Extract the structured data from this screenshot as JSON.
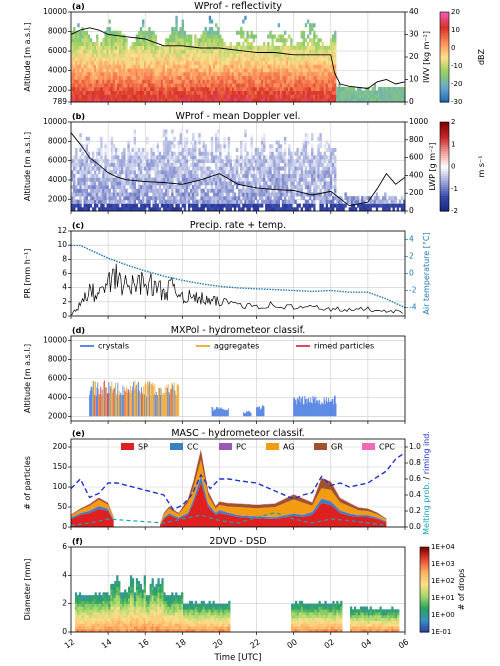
{
  "figure": {
    "x_axis": {
      "label": "Time [UTC]",
      "tick_labels": [
        "12",
        "14",
        "16",
        "18",
        "20",
        "22",
        "00",
        "02",
        "04",
        "06"
      ],
      "start_hour": 12,
      "end_hour": 30
    }
  },
  "chart_data": [
    {
      "type": "heatmap",
      "panel": "(a)",
      "title": "WProf - reflectivity",
      "ylabel": "Altitude [m a.s.l.]",
      "y_ticks": [
        "10000",
        "8000",
        "6000",
        "4000",
        "2000",
        "789"
      ],
      "ylim": [
        789,
        10000
      ],
      "right_axis": {
        "label": "IWV [kg m⁻²]",
        "ticks": [
          "40",
          "30",
          "20",
          "10",
          "0"
        ],
        "range": [
          0,
          40
        ]
      },
      "colorbar": {
        "label": "dBZ",
        "ticks": [
          "20",
          "10",
          "0",
          "-10",
          "-20",
          "-30"
        ],
        "range": [
          -30,
          20
        ],
        "colors": [
          "#2166ac",
          "#67a9cf",
          "#91cf60",
          "#fee08b",
          "#fc8d59",
          "#d73027",
          "#f15bb5"
        ]
      },
      "line_series": {
        "name": "IWV",
        "x": [
          12,
          12.5,
          13,
          13.5,
          14,
          15,
          16,
          17,
          18,
          19,
          20,
          21,
          22,
          23,
          24,
          25,
          26,
          26.2,
          26.5,
          27,
          28,
          28.5,
          29,
          29.5,
          30
        ],
        "y": [
          30,
          32,
          33,
          32,
          30,
          29,
          28,
          25,
          25,
          24,
          24,
          23,
          22,
          22,
          21,
          21,
          21,
          13,
          8,
          7,
          6,
          9,
          10,
          8,
          9
        ]
      }
    },
    {
      "type": "heatmap",
      "panel": "(b)",
      "title": "WProf - mean Doppler vel.",
      "ylabel": "Altitude [m a.s.l.]",
      "y_ticks": [
        "10000",
        "8000",
        "6000",
        "4000",
        "2000"
      ],
      "ylim": [
        789,
        10000
      ],
      "right_axis": {
        "label": "LWP [g m⁻²]",
        "ticks": [
          "1000",
          "800",
          "600",
          "400",
          "200",
          "0"
        ],
        "range": [
          0,
          1000
        ]
      },
      "colorbar": {
        "label": "m s⁻¹",
        "ticks": [
          "2",
          "1",
          "0",
          "-1",
          "-2"
        ],
        "range": [
          -2,
          2
        ],
        "colors": [
          "#1a237e",
          "#3949ab",
          "#9fa8da",
          "#ffffff",
          "#ef9a9a",
          "#c62828",
          "#7f0000"
        ]
      },
      "line_series": {
        "name": "LWP",
        "x": [
          12,
          12.5,
          13,
          13.5,
          14,
          14.5,
          15,
          16,
          17,
          18,
          19,
          20,
          21,
          22,
          23,
          24,
          25,
          26,
          27,
          28,
          28.5,
          29,
          29.5,
          30
        ],
        "y": [
          880,
          750,
          600,
          520,
          430,
          380,
          350,
          330,
          320,
          300,
          350,
          420,
          300,
          260,
          240,
          230,
          180,
          220,
          60,
          100,
          250,
          420,
          300,
          380
        ]
      }
    },
    {
      "type": "line",
      "panel": "(c)",
      "title": "Precip. rate + temp.",
      "ylabel": "PR [mm h⁻¹]",
      "y_ticks": [
        "0",
        "2",
        "4",
        "6",
        "8",
        "10",
        "12"
      ],
      "ylim": [
        0,
        12
      ],
      "right_axis": {
        "label": "Air temperature [°C]",
        "ticks": [
          "4",
          "2",
          "0",
          "-2",
          "-4"
        ],
        "range": [
          -5,
          5
        ]
      },
      "series": [
        {
          "name": "PR",
          "x": [
            12,
            12.5,
            13,
            13.5,
            14,
            14.5,
            15,
            15.5,
            16,
            16.5,
            17,
            17.5,
            18,
            18.5,
            19,
            19.5,
            20,
            21,
            22,
            23,
            24,
            25,
            26,
            27,
            28,
            29,
            30
          ],
          "y": [
            0.2,
            1.5,
            3.5,
            3.0,
            4.5,
            5.5,
            4.0,
            4.5,
            5.0,
            4.0,
            3.5,
            4.0,
            3.0,
            2.5,
            2.5,
            2.0,
            2.0,
            1.8,
            1.5,
            1.5,
            1.2,
            1.2,
            1.0,
            0.8,
            1.0,
            0.8,
            0.5
          ]
        },
        {
          "name": "Air temperature",
          "x": [
            12,
            12.5,
            13,
            14,
            15,
            16,
            17,
            18,
            19,
            20,
            21,
            22,
            23,
            24,
            25,
            26,
            27,
            28,
            29,
            30
          ],
          "y": [
            3.3,
            3.3,
            2.8,
            1.8,
            1.0,
            0.3,
            -0.3,
            -0.8,
            -1.2,
            -1.5,
            -1.7,
            -1.8,
            -1.9,
            -2.0,
            -2.1,
            -2.0,
            -2.2,
            -2.2,
            -3.0,
            -4.0
          ]
        }
      ]
    },
    {
      "type": "heatmap",
      "panel": "(d)",
      "title": "MXPol - hydrometeor classif.",
      "ylabel": "Altitude [m a.s.l.]",
      "y_ticks": [
        "10000",
        "8000",
        "6000",
        "4000",
        "2000"
      ],
      "ylim": [
        1500,
        10500
      ],
      "legend": {
        "position": "top",
        "entries": [
          {
            "name": "crystals",
            "color": "#4a7ce0"
          },
          {
            "name": "aggregates",
            "color": "#f0a830"
          },
          {
            "name": "rimed particles",
            "color": "#e0304a"
          }
        ]
      }
    },
    {
      "type": "area",
      "panel": "(e)",
      "title": "MASC - hydrometeor classif.",
      "ylabel": "# of particles",
      "y_ticks": [
        "0",
        "50",
        "100",
        "150",
        "200"
      ],
      "ylim": [
        0,
        220
      ],
      "right_axis": {
        "label_parts": [
          "Melting prob.",
          "/",
          "riming ind."
        ],
        "label_colors": [
          "#17a2b8",
          "#000000",
          "#2233cc"
        ],
        "ticks": [
          "0.0",
          "0.2",
          "0.4",
          "0.6",
          "0.8",
          "1.0"
        ],
        "range": [
          0,
          1.1
        ]
      },
      "legend": {
        "position": "top",
        "entries": [
          {
            "name": "SP",
            "color": "#e02020"
          },
          {
            "name": "CC",
            "color": "#3a7fc0"
          },
          {
            "name": "PC",
            "color": "#9b59b6"
          },
          {
            "name": "AG",
            "color": "#f39c12"
          },
          {
            "name": "GR",
            "color": "#a0522d"
          },
          {
            "name": "CPC",
            "color": "#f06bb5"
          }
        ]
      },
      "x": [
        12,
        12.5,
        13,
        13.5,
        14,
        14.3,
        16.8,
        17,
        17.3,
        17.5,
        17.8,
        18.3,
        18.6,
        19,
        19.4,
        19.8,
        20,
        20.5,
        21,
        22,
        23,
        24,
        24.5,
        25,
        25.5,
        26,
        26.5,
        27,
        27.5,
        28,
        28.5,
        29
      ],
      "stack": [
        {
          "name": "SP",
          "values": [
            20,
            30,
            35,
            45,
            40,
            15,
            5,
            20,
            30,
            25,
            20,
            30,
            60,
            110,
            50,
            30,
            35,
            30,
            25,
            22,
            20,
            28,
            25,
            30,
            60,
            55,
            35,
            28,
            25,
            25,
            20,
            12
          ]
        },
        {
          "name": "CC",
          "values": [
            3,
            4,
            5,
            6,
            5,
            2,
            1,
            3,
            4,
            4,
            3,
            5,
            8,
            15,
            6,
            5,
            6,
            5,
            4,
            4,
            4,
            5,
            5,
            6,
            10,
            8,
            6,
            5,
            4,
            4,
            3,
            2
          ]
        },
        {
          "name": "PC",
          "values": [
            1,
            1,
            1,
            2,
            1,
            1,
            0,
            1,
            1,
            1,
            1,
            1,
            2,
            3,
            2,
            1,
            2,
            1,
            1,
            1,
            1,
            1,
            1,
            2,
            2,
            2,
            1,
            1,
            1,
            1,
            1,
            1
          ]
        },
        {
          "name": "AG",
          "values": [
            5,
            8,
            12,
            15,
            10,
            4,
            2,
            8,
            12,
            10,
            8,
            25,
            30,
            40,
            20,
            10,
            12,
            15,
            20,
            20,
            25,
            35,
            30,
            15,
            25,
            28,
            20,
            18,
            12,
            10,
            8,
            4
          ]
        },
        {
          "name": "GR",
          "values": [
            2,
            3,
            4,
            5,
            4,
            2,
            1,
            3,
            4,
            4,
            3,
            8,
            15,
            25,
            10,
            6,
            8,
            8,
            8,
            8,
            8,
            12,
            10,
            8,
            25,
            20,
            10,
            8,
            6,
            6,
            4,
            2
          ]
        },
        {
          "name": "CPC",
          "values": [
            0,
            0,
            1,
            1,
            1,
            0,
            0,
            0,
            1,
            1,
            0,
            1,
            1,
            2,
            1,
            1,
            1,
            1,
            1,
            1,
            1,
            1,
            1,
            1,
            1,
            1,
            1,
            1,
            1,
            0,
            0,
            0
          ]
        }
      ],
      "line_series": [
        {
          "name": "riming ind.",
          "style": "dashed",
          "x": [
            12,
            12.5,
            13,
            13.5,
            14,
            14.5,
            17,
            17.5,
            18,
            18.5,
            19,
            19.5,
            20,
            20.5,
            21,
            22,
            23,
            24,
            24.5,
            25,
            25.5,
            26,
            26.5,
            27,
            28,
            29,
            29.5,
            30
          ],
          "y": [
            0.48,
            0.6,
            0.37,
            0.42,
            0.55,
            0.55,
            0.4,
            0.22,
            0.27,
            0.4,
            0.65,
            0.48,
            0.6,
            0.6,
            0.58,
            0.55,
            0.45,
            0.35,
            0.4,
            0.43,
            0.63,
            0.52,
            0.55,
            0.5,
            0.55,
            0.7,
            0.85,
            0.93
          ]
        },
        {
          "name": "Melting prob.",
          "style": "dashed",
          "x": [
            12,
            13,
            14,
            17,
            18,
            19,
            20,
            21,
            22,
            23,
            24,
            25,
            26,
            27,
            28,
            29
          ],
          "y": [
            0.02,
            0.05,
            0.1,
            0.05,
            0.1,
            0.15,
            0.08,
            0.05,
            0.12,
            0.18,
            0.1,
            0.05,
            0.1,
            0.08,
            0.05,
            0.02
          ]
        }
      ]
    },
    {
      "type": "heatmap",
      "panel": "(f)",
      "title": "2DVD - DSD",
      "ylabel": "Diameter [mm]",
      "y_ticks": [
        "0",
        "2",
        "4",
        "6"
      ],
      "ylim": [
        0,
        6
      ],
      "colorbar": {
        "label": "# of drops",
        "ticks": [
          "1E+04",
          "1E+03",
          "1E+02",
          "1E+01",
          "1E+00",
          "1E-01"
        ],
        "range": [
          -1,
          4
        ],
        "colors": [
          "#2c3e9e",
          "#3a8fc0",
          "#2ca25f",
          "#a6d96a",
          "#fee08b",
          "#fdae61",
          "#e34a33",
          "#7f0000"
        ]
      }
    }
  ]
}
